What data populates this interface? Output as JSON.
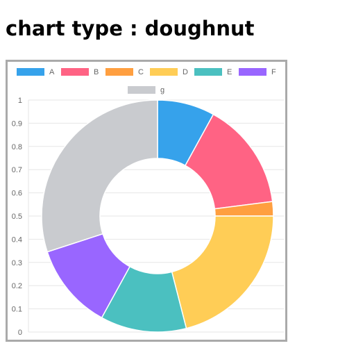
{
  "heading": "chart type : doughnut",
  "chart_data": {
    "type": "doughnut",
    "title": "",
    "labels": [
      "A",
      "B",
      "C",
      "D",
      "E",
      "F",
      "g"
    ],
    "values": [
      8,
      15,
      2,
      21,
      12,
      12,
      30
    ],
    "colors": [
      "#36a2eb",
      "#ff6384",
      "#ff9f40",
      "#ffcd56",
      "#4bc0c0",
      "#9966ff",
      "#c9cbcf"
    ],
    "legend_position": "top",
    "y_ticks": [
      "0",
      "0.1",
      "0.2",
      "0.3",
      "0.4",
      "0.5",
      "0.6",
      "0.7",
      "0.8",
      "0.9",
      "1"
    ],
    "ylim": [
      0,
      1
    ],
    "grid": true
  }
}
